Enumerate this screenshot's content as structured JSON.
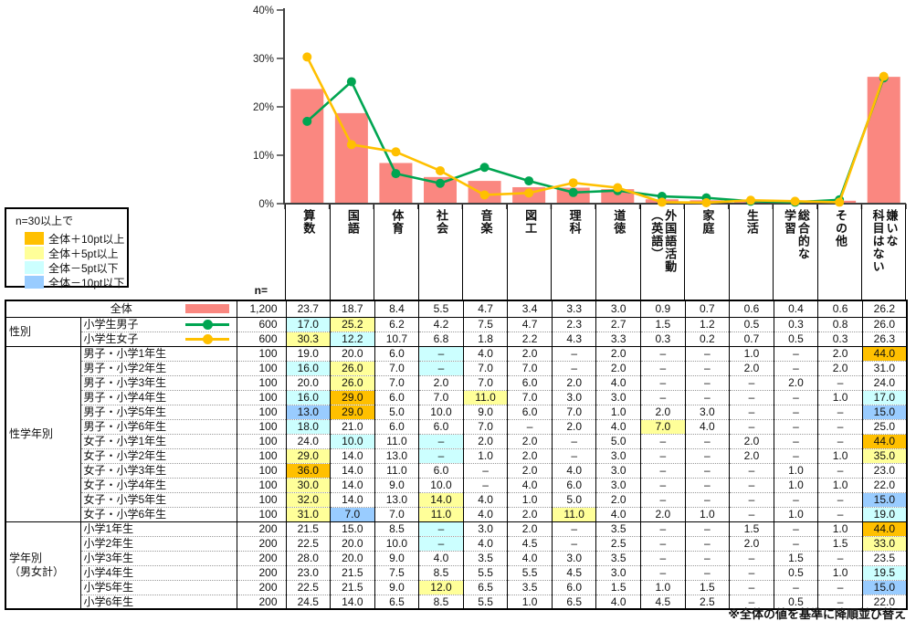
{
  "chart_data": {
    "type": "bar+line",
    "title": "",
    "ylabel": "",
    "ylim": [
      0,
      40
    ],
    "yticks": [
      "0%",
      "10%",
      "20%",
      "30%",
      "40%"
    ],
    "grid": false,
    "categories": [
      "算数",
      "国語",
      "体育",
      "社会",
      "音楽",
      "図工",
      "理科",
      "道徳",
      "外国語活動（英語）",
      "家庭",
      "生活",
      "総合的な学習",
      "その他",
      "嫌いな科目はない"
    ],
    "categories_display": [
      "算数",
      "国語",
      "体育",
      "社会",
      "音楽",
      "図工",
      "理科",
      "道徳",
      "外国語活動\n（英語）",
      "家庭",
      "生活",
      "総合的な\n学習",
      "その他",
      "嫌いな\n科目はない"
    ],
    "series": [
      {
        "name": "全体",
        "type": "bar",
        "color": "#FA8780",
        "values": [
          23.7,
          18.7,
          8.4,
          5.5,
          4.7,
          3.4,
          3.3,
          3.0,
          0.9,
          0.7,
          0.6,
          0.4,
          0.6,
          26.2
        ]
      },
      {
        "name": "小学生男子",
        "type": "line",
        "color": "#00A551",
        "values": [
          17.0,
          25.2,
          6.2,
          4.2,
          7.5,
          4.7,
          2.3,
          2.7,
          1.5,
          1.2,
          0.5,
          0.3,
          0.8,
          26.0
        ]
      },
      {
        "name": "小学生女子",
        "type": "line",
        "color": "#FFC000",
        "values": [
          30.3,
          12.2,
          10.7,
          6.8,
          1.8,
          2.2,
          4.3,
          3.3,
          0.3,
          0.2,
          0.7,
          0.5,
          0.3,
          26.3
        ]
      }
    ]
  },
  "legend": {
    "title": "n=30以上で",
    "items": [
      {
        "label": "全体＋10pt以上",
        "color": "#FFC000"
      },
      {
        "label": "全体＋5pt以上",
        "color": "#FFFF99"
      },
      {
        "label": "全体－5pt以下",
        "color": "#CCFFFF"
      },
      {
        "label": "全体－10pt以下",
        "color": "#99CCFF"
      }
    ]
  },
  "n_header": "n=",
  "footnote": "※全体の値を基準に降順並び替え",
  "highlight_colors": {
    "o": "#FFC000",
    "y": "#FFFF99",
    "c": "#CCFFFF",
    "b": "#99CCFF"
  },
  "table": {
    "groups": [
      {
        "label": "",
        "rows": [
          {
            "label": "全体",
            "series": 0,
            "n": "1,200",
            "values": [
              "23.7",
              "18.7",
              "8.4",
              "5.5",
              "4.7",
              "3.4",
              "3.3",
              "3.0",
              "0.9",
              "0.7",
              "0.6",
              "0.4",
              "0.6",
              "26.2"
            ],
            "hl": [
              "",
              "",
              "",
              "",
              "",
              "",
              "",
              "",
              "",
              "",
              "",
              "",
              "",
              ""
            ]
          }
        ]
      },
      {
        "label": "性別",
        "rows": [
          {
            "label": "小学生男子",
            "series": 1,
            "n": "600",
            "values": [
              "17.0",
              "25.2",
              "6.2",
              "4.2",
              "7.5",
              "4.7",
              "2.3",
              "2.7",
              "1.5",
              "1.2",
              "0.5",
              "0.3",
              "0.8",
              "26.0"
            ],
            "hl": [
              "c",
              "y",
              "",
              "",
              "",
              "",
              "",
              "",
              "",
              "",
              "",
              "",
              "",
              ""
            ]
          },
          {
            "label": "小学生女子",
            "series": 2,
            "n": "600",
            "values": [
              "30.3",
              "12.2",
              "10.7",
              "6.8",
              "1.8",
              "2.2",
              "4.3",
              "3.3",
              "0.3",
              "0.2",
              "0.7",
              "0.5",
              "0.3",
              "26.3"
            ],
            "hl": [
              "y",
              "c",
              "",
              "",
              "",
              "",
              "",
              "",
              "",
              "",
              "",
              "",
              "",
              ""
            ]
          }
        ]
      },
      {
        "label": "性学年別",
        "rows": [
          {
            "label": "男子・小学1年生",
            "series": null,
            "n": "100",
            "values": [
              "19.0",
              "20.0",
              "6.0",
              "–",
              "4.0",
              "2.0",
              "–",
              "2.0",
              "–",
              "–",
              "1.0",
              "–",
              "2.0",
              "44.0"
            ],
            "hl": [
              "",
              "",
              "",
              "c",
              "",
              "",
              "",
              "",
              "",
              "",
              "",
              "",
              "",
              "o"
            ]
          },
          {
            "label": "男子・小学2年生",
            "series": null,
            "n": "100",
            "values": [
              "16.0",
              "26.0",
              "7.0",
              "–",
              "7.0",
              "7.0",
              "–",
              "2.0",
              "–",
              "–",
              "2.0",
              "–",
              "2.0",
              "31.0"
            ],
            "hl": [
              "c",
              "y",
              "",
              "c",
              "",
              "",
              "",
              "",
              "",
              "",
              "",
              "",
              "",
              ""
            ]
          },
          {
            "label": "男子・小学3年生",
            "series": null,
            "n": "100",
            "values": [
              "20.0",
              "26.0",
              "7.0",
              "2.0",
              "7.0",
              "6.0",
              "2.0",
              "4.0",
              "–",
              "–",
              "–",
              "2.0",
              "–",
              "24.0"
            ],
            "hl": [
              "",
              "y",
              "",
              "",
              "",
              "",
              "",
              "",
              "",
              "",
              "",
              "",
              "",
              ""
            ]
          },
          {
            "label": "男子・小学4年生",
            "series": null,
            "n": "100",
            "values": [
              "16.0",
              "29.0",
              "6.0",
              "7.0",
              "11.0",
              "7.0",
              "3.0",
              "3.0",
              "–",
              "–",
              "–",
              "–",
              "1.0",
              "17.0"
            ],
            "hl": [
              "c",
              "o",
              "",
              "",
              "y",
              "",
              "",
              "",
              "",
              "",
              "",
              "",
              "",
              "c"
            ]
          },
          {
            "label": "男子・小学5年生",
            "series": null,
            "n": "100",
            "values": [
              "13.0",
              "29.0",
              "5.0",
              "10.0",
              "9.0",
              "6.0",
              "7.0",
              "1.0",
              "2.0",
              "3.0",
              "–",
              "–",
              "–",
              "15.0"
            ],
            "hl": [
              "b",
              "o",
              "",
              "",
              "",
              "",
              "",
              "",
              "",
              "",
              "",
              "",
              "",
              "b"
            ]
          },
          {
            "label": "男子・小学6年生",
            "series": null,
            "n": "100",
            "values": [
              "18.0",
              "21.0",
              "6.0",
              "6.0",
              "7.0",
              "–",
              "2.0",
              "4.0",
              "7.0",
              "4.0",
              "–",
              "–",
              "–",
              "25.0"
            ],
            "hl": [
              "c",
              "",
              "",
              "",
              "",
              "",
              "",
              "",
              "y",
              "",
              "",
              "",
              "",
              ""
            ]
          },
          {
            "label": "女子・小学1年生",
            "series": null,
            "n": "100",
            "values": [
              "24.0",
              "10.0",
              "11.0",
              "–",
              "2.0",
              "2.0",
              "–",
              "5.0",
              "–",
              "–",
              "2.0",
              "–",
              "–",
              "44.0"
            ],
            "hl": [
              "",
              "c",
              "",
              "c",
              "",
              "",
              "",
              "",
              "",
              "",
              "",
              "",
              "",
              "o"
            ]
          },
          {
            "label": "女子・小学2年生",
            "series": null,
            "n": "100",
            "values": [
              "29.0",
              "14.0",
              "13.0",
              "–",
              "1.0",
              "2.0",
              "–",
              "3.0",
              "–",
              "–",
              "2.0",
              "–",
              "1.0",
              "35.0"
            ],
            "hl": [
              "y",
              "",
              "",
              "c",
              "",
              "",
              "",
              "",
              "",
              "",
              "",
              "",
              "",
              "y"
            ]
          },
          {
            "label": "女子・小学3年生",
            "series": null,
            "n": "100",
            "values": [
              "36.0",
              "14.0",
              "11.0",
              "6.0",
              "–",
              "2.0",
              "4.0",
              "3.0",
              "–",
              "–",
              "–",
              "1.0",
              "–",
              "23.0"
            ],
            "hl": [
              "o",
              "",
              "",
              "",
              "",
              "",
              "",
              "",
              "",
              "",
              "",
              "",
              "",
              ""
            ]
          },
          {
            "label": "女子・小学4年生",
            "series": null,
            "n": "100",
            "values": [
              "30.0",
              "14.0",
              "9.0",
              "10.0",
              "–",
              "4.0",
              "6.0",
              "3.0",
              "–",
              "–",
              "–",
              "1.0",
              "1.0",
              "22.0"
            ],
            "hl": [
              "y",
              "",
              "",
              "",
              "",
              "",
              "",
              "",
              "",
              "",
              "",
              "",
              "",
              ""
            ]
          },
          {
            "label": "女子・小学5年生",
            "series": null,
            "n": "100",
            "values": [
              "32.0",
              "14.0",
              "13.0",
              "14.0",
              "4.0",
              "1.0",
              "5.0",
              "2.0",
              "–",
              "–",
              "–",
              "–",
              "–",
              "15.0"
            ],
            "hl": [
              "y",
              "",
              "",
              "y",
              "",
              "",
              "",
              "",
              "",
              "",
              "",
              "",
              "",
              "b"
            ]
          },
          {
            "label": "女子・小学6年生",
            "series": null,
            "n": "100",
            "values": [
              "31.0",
              "7.0",
              "7.0",
              "11.0",
              "4.0",
              "2.0",
              "11.0",
              "4.0",
              "2.0",
              "1.0",
              "–",
              "1.0",
              "–",
              "19.0"
            ],
            "hl": [
              "y",
              "b",
              "",
              "y",
              "",
              "",
              "y",
              "",
              "",
              "",
              "",
              "",
              "",
              "c"
            ]
          }
        ]
      },
      {
        "label": "学年別\n（男女計）",
        "rows": [
          {
            "label": "小学1年生",
            "series": null,
            "n": "200",
            "values": [
              "21.5",
              "15.0",
              "8.5",
              "–",
              "3.0",
              "2.0",
              "–",
              "3.5",
              "–",
              "–",
              "1.5",
              "–",
              "1.0",
              "44.0"
            ],
            "hl": [
              "",
              "",
              "",
              "c",
              "",
              "",
              "",
              "",
              "",
              "",
              "",
              "",
              "",
              "o"
            ]
          },
          {
            "label": "小学2年生",
            "series": null,
            "n": "200",
            "values": [
              "22.5",
              "20.0",
              "10.0",
              "–",
              "4.0",
              "4.5",
              "–",
              "2.5",
              "–",
              "–",
              "2.0",
              "–",
              "1.5",
              "33.0"
            ],
            "hl": [
              "",
              "",
              "",
              "c",
              "",
              "",
              "",
              "",
              "",
              "",
              "",
              "",
              "",
              "y"
            ]
          },
          {
            "label": "小学3年生",
            "series": null,
            "n": "200",
            "values": [
              "28.0",
              "20.0",
              "9.0",
              "4.0",
              "3.5",
              "4.0",
              "3.0",
              "3.5",
              "–",
              "–",
              "–",
              "1.5",
              "–",
              "23.5"
            ],
            "hl": [
              "",
              "",
              "",
              "",
              "",
              "",
              "",
              "",
              "",
              "",
              "",
              "",
              "",
              ""
            ]
          },
          {
            "label": "小学4年生",
            "series": null,
            "n": "200",
            "values": [
              "23.0",
              "21.5",
              "7.5",
              "8.5",
              "5.5",
              "5.5",
              "4.5",
              "3.0",
              "–",
              "–",
              "–",
              "0.5",
              "1.0",
              "19.5"
            ],
            "hl": [
              "",
              "",
              "",
              "",
              "",
              "",
              "",
              "",
              "",
              "",
              "",
              "",
              "",
              "c"
            ]
          },
          {
            "label": "小学5年生",
            "series": null,
            "n": "200",
            "values": [
              "22.5",
              "21.5",
              "9.0",
              "12.0",
              "6.5",
              "3.5",
              "6.0",
              "1.5",
              "1.0",
              "1.5",
              "–",
              "–",
              "–",
              "15.0"
            ],
            "hl": [
              "",
              "",
              "",
              "y",
              "",
              "",
              "",
              "",
              "",
              "",
              "",
              "",
              "",
              "b"
            ]
          },
          {
            "label": "小学6年生",
            "series": null,
            "n": "200",
            "values": [
              "24.5",
              "14.0",
              "6.5",
              "8.5",
              "5.5",
              "1.0",
              "6.5",
              "4.0",
              "4.5",
              "2.5",
              "–",
              "0.5",
              "–",
              "22.0"
            ],
            "hl": [
              "",
              "",
              "",
              "",
              "",
              "",
              "",
              "",
              "",
              "",
              "",
              "",
              "",
              ""
            ]
          }
        ]
      }
    ]
  }
}
